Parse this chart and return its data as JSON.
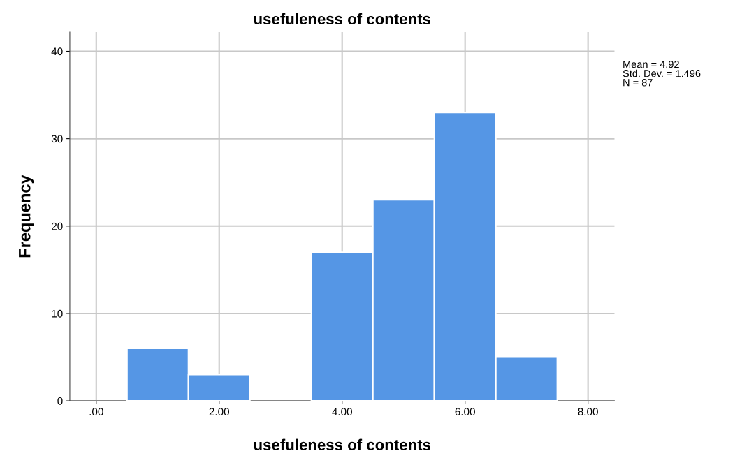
{
  "chart_data": {
    "type": "histogram",
    "title": "usefuleness of contents",
    "xlabel": "usefuleness of contents",
    "ylabel": "Frequency",
    "bins": [
      0.5,
      1.5,
      2.5,
      3.5,
      4.5,
      5.5,
      6.5,
      7.5
    ],
    "values": [
      6,
      3,
      0,
      17,
      23,
      33,
      5
    ],
    "color": "#5596e5",
    "xlim": [
      -0.43,
      8.43
    ],
    "xticks": [
      {
        "value": 0,
        "label": ".00"
      },
      {
        "value": 2,
        "label": "2.00"
      },
      {
        "value": 4,
        "label": "4.00"
      },
      {
        "value": 6,
        "label": "6.00"
      },
      {
        "value": 8,
        "label": "8.00"
      }
    ],
    "ylim": [
      0,
      42.2
    ],
    "yticks": [
      0,
      10,
      20,
      30,
      40
    ],
    "grid": true,
    "annotations": [
      "Mean = 4.92\nStd. Dev. = 1.496\nN = 87"
    ]
  }
}
